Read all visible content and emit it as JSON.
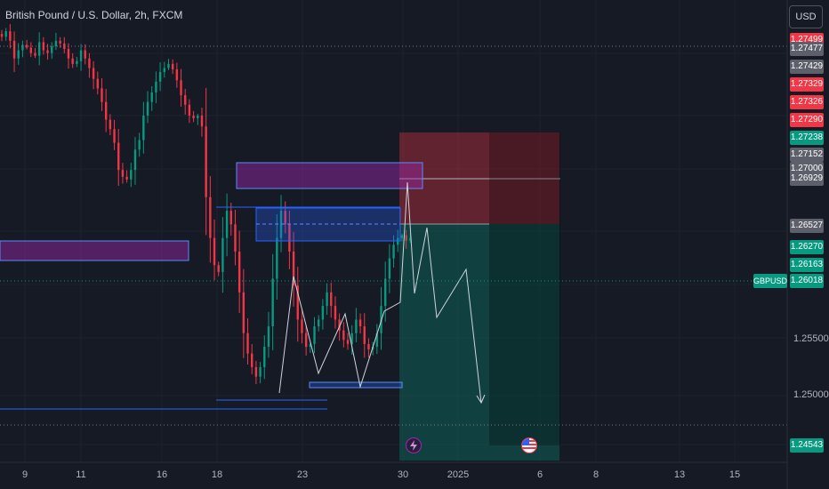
{
  "header": {
    "title": "British Pound / U.S. Dollar, 2h, FXCM",
    "currency_button": "USD"
  },
  "symbol_tag": "GBPUSD",
  "price_axis": {
    "tags": [
      {
        "text": "1.27499",
        "color": "#f23645"
      },
      {
        "text": "1.27477",
        "color": "#5d606b"
      },
      {
        "text": "1.27429",
        "color": "#5d606b"
      },
      {
        "text": "1.27329",
        "color": "#f23645"
      },
      {
        "text": "1.27326",
        "color": "#f23645"
      },
      {
        "text": "1.27290",
        "color": "#f23645"
      },
      {
        "text": "1.27238",
        "color": "#089981"
      },
      {
        "text": "1.27152",
        "color": "#5d606b"
      },
      {
        "text": "1.27000",
        "color": "#5d606b"
      },
      {
        "text": "1.26929",
        "color": "#5d606b"
      },
      {
        "text": "1.26527",
        "color": "#5d606b"
      },
      {
        "text": "1.26270",
        "color": "#089981"
      },
      {
        "text": "1.26163",
        "color": "#089981"
      },
      {
        "text": "1.26018",
        "color": "#089981"
      },
      {
        "text": "1.24543",
        "color": "#089981"
      }
    ],
    "plain_labels": [
      "1.25500",
      "1.25000"
    ]
  },
  "time_axis": [
    "9",
    "11",
    "16",
    "18",
    "23",
    "30",
    "2025",
    "6",
    "8",
    "13",
    "15"
  ],
  "colors": {
    "background": "#161a25",
    "up": "#089981",
    "down": "#f23645",
    "zone_blue": "#2962ff",
    "zone_purple": "#9c27b0"
  },
  "chart_data": {
    "type": "candlestick",
    "title": "British Pound / U.S. Dollar, 2h, FXCM",
    "symbol": "GBPUSD",
    "timeframe": "2h",
    "current_price": 1.26018,
    "ylim": [
      1.2425,
      1.2765
    ],
    "x_ticks": [
      "9",
      "11",
      "16",
      "18",
      "23",
      "30",
      "2025",
      "6",
      "8",
      "13",
      "15"
    ],
    "y_ticks": [
      1.255,
      1.25
    ],
    "path_points": [
      [
        1.274,
        1.2738,
        1.2742,
        1.2735,
        1.2722,
        1.2728,
        1.2732,
        1.273,
        1.2726,
        1.2724,
        1.2734,
        1.2728,
        1.2726,
        1.2731,
        1.2735,
        1.2733,
        1.2729,
        1.2722,
        1.2718,
        1.272
      ],
      [
        1.2728,
        1.2722,
        1.2715,
        1.2707,
        1.27,
        1.269,
        1.2677,
        1.267,
        1.266,
        1.264,
        1.2635,
        1.2633,
        1.264,
        1.2655,
        1.2662,
        1.268,
        1.269,
        1.2697,
        1.2705,
        1.2712
      ],
      [
        1.2715,
        1.2718,
        1.2714,
        1.2706,
        1.2695,
        1.2688,
        1.268,
        1.2678,
        1.268,
        1.2672,
        1.262,
        1.259,
        1.257,
        1.2565,
        1.259,
        1.261,
        1.26,
        1.258,
        1.255,
        1.252
      ],
      [
        1.2505,
        1.2495,
        1.2488,
        1.2495,
        1.251,
        1.2525,
        1.256,
        1.259,
        1.261,
        1.26,
        1.258,
        1.2555,
        1.253,
        1.252,
        1.251,
        1.2512,
        1.2525,
        1.253,
        1.254,
        1.255
      ],
      [
        1.254,
        1.253,
        1.2522,
        1.2515,
        1.2512,
        1.252,
        1.253,
        1.2525,
        1.2512,
        1.2508,
        1.251,
        1.252,
        1.254,
        1.256,
        1.2575,
        1.2585,
        1.259,
        1.2592,
        1.2588,
        1.259
      ]
    ],
    "zones": [
      {
        "name": "supply-zone-top",
        "from": 1.27,
        "to": 1.2691,
        "color": "#9c27b0"
      },
      {
        "name": "fvg-zone",
        "from": 1.2683,
        "to": 1.2668,
        "color": "#2962ff"
      },
      {
        "name": "left-zone",
        "from": 1.2662,
        "to": 1.2652,
        "color": "#9c27b0"
      }
    ],
    "position": {
      "entry": 1.26527,
      "stop": 1.27238,
      "target": 1.24543
    }
  }
}
